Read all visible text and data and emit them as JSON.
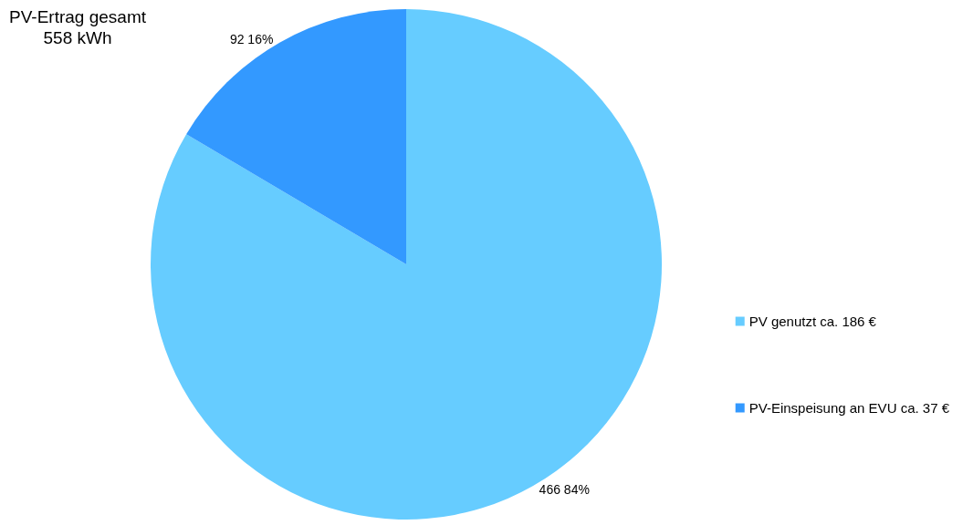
{
  "chart_data": {
    "type": "pie",
    "title": "PV-Ertrag gesamt",
    "subtitle": "558 kWh",
    "categories": [
      "PV genutzt ca. 186 €",
      "PV-Einspeisung an EVU ca. 37 €"
    ],
    "values": [
      466,
      92
    ],
    "colors": [
      "#66ccff",
      "#3399ff"
    ],
    "value_labels": [
      "466 84%",
      "92 16%"
    ],
    "legend": "right"
  }
}
